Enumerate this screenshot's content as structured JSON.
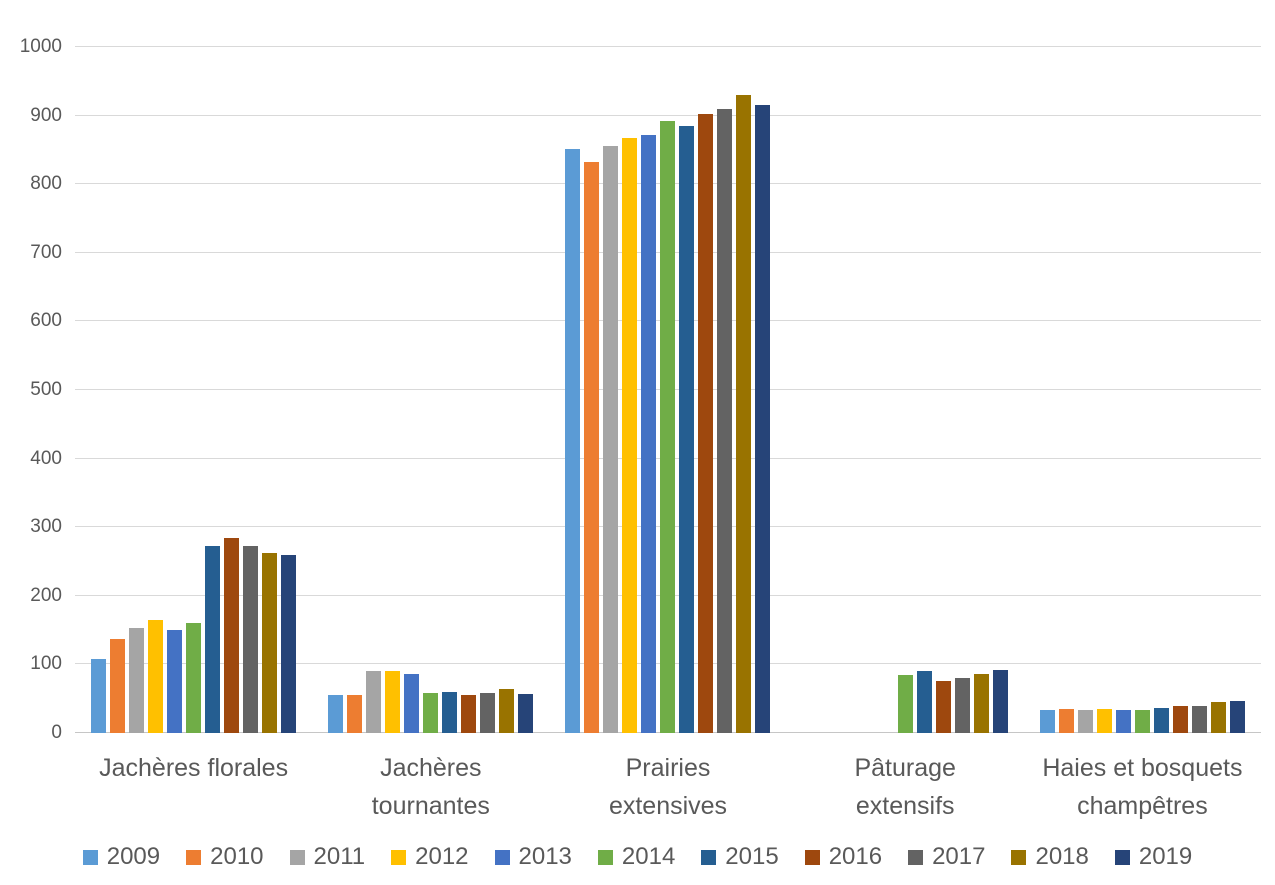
{
  "chart_data": {
    "type": "bar",
    "title": "",
    "xlabel": "",
    "ylabel": "",
    "ylim": [
      0,
      1000
    ],
    "ytick_step": 100,
    "yticks": [
      0,
      100,
      200,
      300,
      400,
      500,
      600,
      700,
      800,
      900,
      1000
    ],
    "grid": true,
    "legend_position": "bottom",
    "axis_text_color": "#595959",
    "gridline_color": "#d9d9d9",
    "categories": [
      "Jachères florales",
      "Jachères tournantes",
      "Prairies extensives",
      "Pâturage extensifs",
      "Haies et bosquets champêtres"
    ],
    "category_lines": [
      [
        "Jachères florales"
      ],
      [
        "Jachères",
        "tournantes"
      ],
      [
        "Prairies",
        "extensives"
      ],
      [
        "Pâturage",
        "extensifs"
      ],
      [
        "Haies et bosquets",
        "champêtres"
      ]
    ],
    "series": [
      {
        "name": "2009",
        "color": "#5B9BD5",
        "values": [
          108,
          56,
          852,
          0,
          34
        ]
      },
      {
        "name": "2010",
        "color": "#ED7D31",
        "values": [
          137,
          55,
          833,
          0,
          35
        ]
      },
      {
        "name": "2011",
        "color": "#A5A5A5",
        "values": [
          153,
          91,
          855,
          0,
          33
        ]
      },
      {
        "name": "2012",
        "color": "#FFC000",
        "values": [
          165,
          90,
          867,
          0,
          35
        ]
      },
      {
        "name": "2013",
        "color": "#4472C4",
        "values": [
          150,
          86,
          872,
          0,
          33
        ]
      },
      {
        "name": "2014",
        "color": "#70AD47",
        "values": [
          160,
          58,
          892,
          85,
          33
        ]
      },
      {
        "name": "2015",
        "color": "#255E91",
        "values": [
          272,
          60,
          885,
          90,
          36
        ]
      },
      {
        "name": "2016",
        "color": "#9E480E",
        "values": [
          285,
          55,
          902,
          76,
          39
        ]
      },
      {
        "name": "2017",
        "color": "#636363",
        "values": [
          273,
          58,
          910,
          80,
          40
        ]
      },
      {
        "name": "2018",
        "color": "#997300",
        "values": [
          262,
          64,
          930,
          86,
          45
        ]
      },
      {
        "name": "2019",
        "color": "#264478",
        "values": [
          259,
          57,
          916,
          92,
          47
        ]
      }
    ]
  }
}
